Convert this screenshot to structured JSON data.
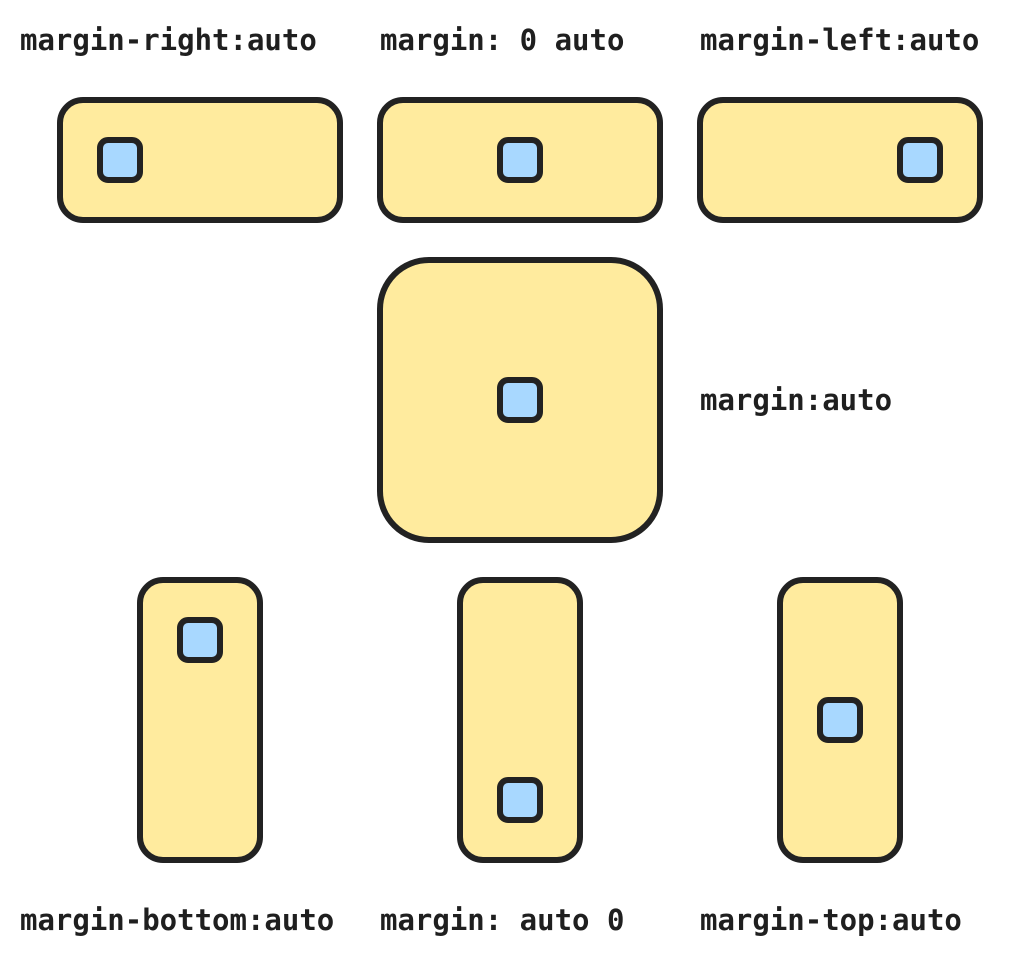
{
  "labels": {
    "margin_right_auto": "margin-right:auto",
    "margin_0_auto": "margin: 0 auto",
    "margin_left_auto": "margin-left:auto",
    "margin_auto": "margin:auto",
    "margin_bottom_auto": "margin-bottom:auto",
    "margin_auto_0": "margin: auto 0",
    "margin_top_auto": "margin-top:auto"
  },
  "colors": {
    "container_fill": "#ffeb9e",
    "item_fill": "#a8d8ff",
    "outline": "#222222",
    "text": "#1f1f1f",
    "background": "#ffffff"
  }
}
